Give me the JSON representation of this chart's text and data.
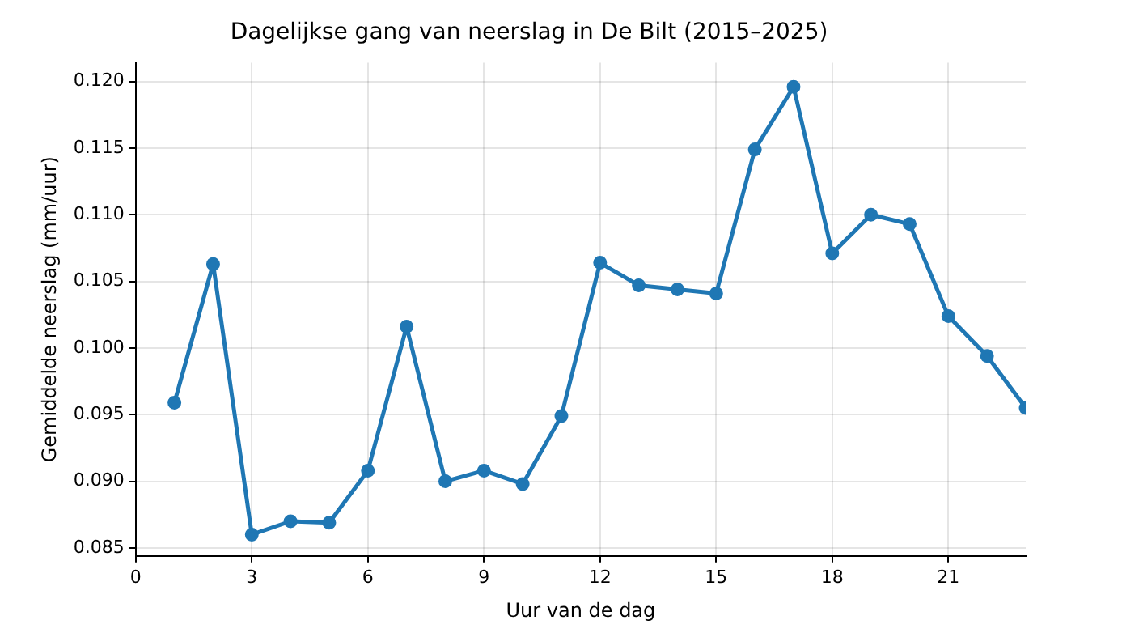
{
  "chart_data": {
    "type": "line",
    "title": "Dagelijkse gang van neerslag in De Bilt (2015–2025)",
    "xlabel": "Uur van de dag",
    "ylabel": "Gemiddelde neerslag (mm/uur)",
    "x": [
      1,
      2,
      3,
      4,
      5,
      6,
      7,
      8,
      9,
      10,
      11,
      12,
      13,
      14,
      15,
      16,
      17,
      18,
      19,
      20,
      21,
      22,
      23
    ],
    "series": [
      {
        "color": "#1f77b4",
        "values": [
          0.0959,
          0.1063,
          0.086,
          0.087,
          0.0869,
          0.0908,
          0.1016,
          0.09,
          0.0908,
          0.0898,
          0.0949,
          0.1064,
          0.1047,
          0.1044,
          0.1041,
          0.1149,
          0.1196,
          0.1071,
          0.11,
          0.1093,
          0.1024,
          0.0994,
          0.0955
        ]
      }
    ],
    "xlim": [
      0,
      23
    ],
    "xticks": [
      0,
      3,
      6,
      9,
      12,
      15,
      18,
      21
    ],
    "ylim": [
      0.0844,
      0.1214
    ],
    "yticks": [
      {
        "value": 0.085,
        "label": "0.085"
      },
      {
        "value": 0.09,
        "label": "0.090"
      },
      {
        "value": 0.095,
        "label": "0.095"
      },
      {
        "value": 0.1,
        "label": "0.100"
      },
      {
        "value": 0.105,
        "label": "0.105"
      },
      {
        "value": 0.11,
        "label": "0.110"
      },
      {
        "value": 0.115,
        "label": "0.115"
      },
      {
        "value": 0.12,
        "label": "0.120"
      }
    ],
    "grid": true,
    "marker": "circle",
    "line_style": "solid"
  }
}
